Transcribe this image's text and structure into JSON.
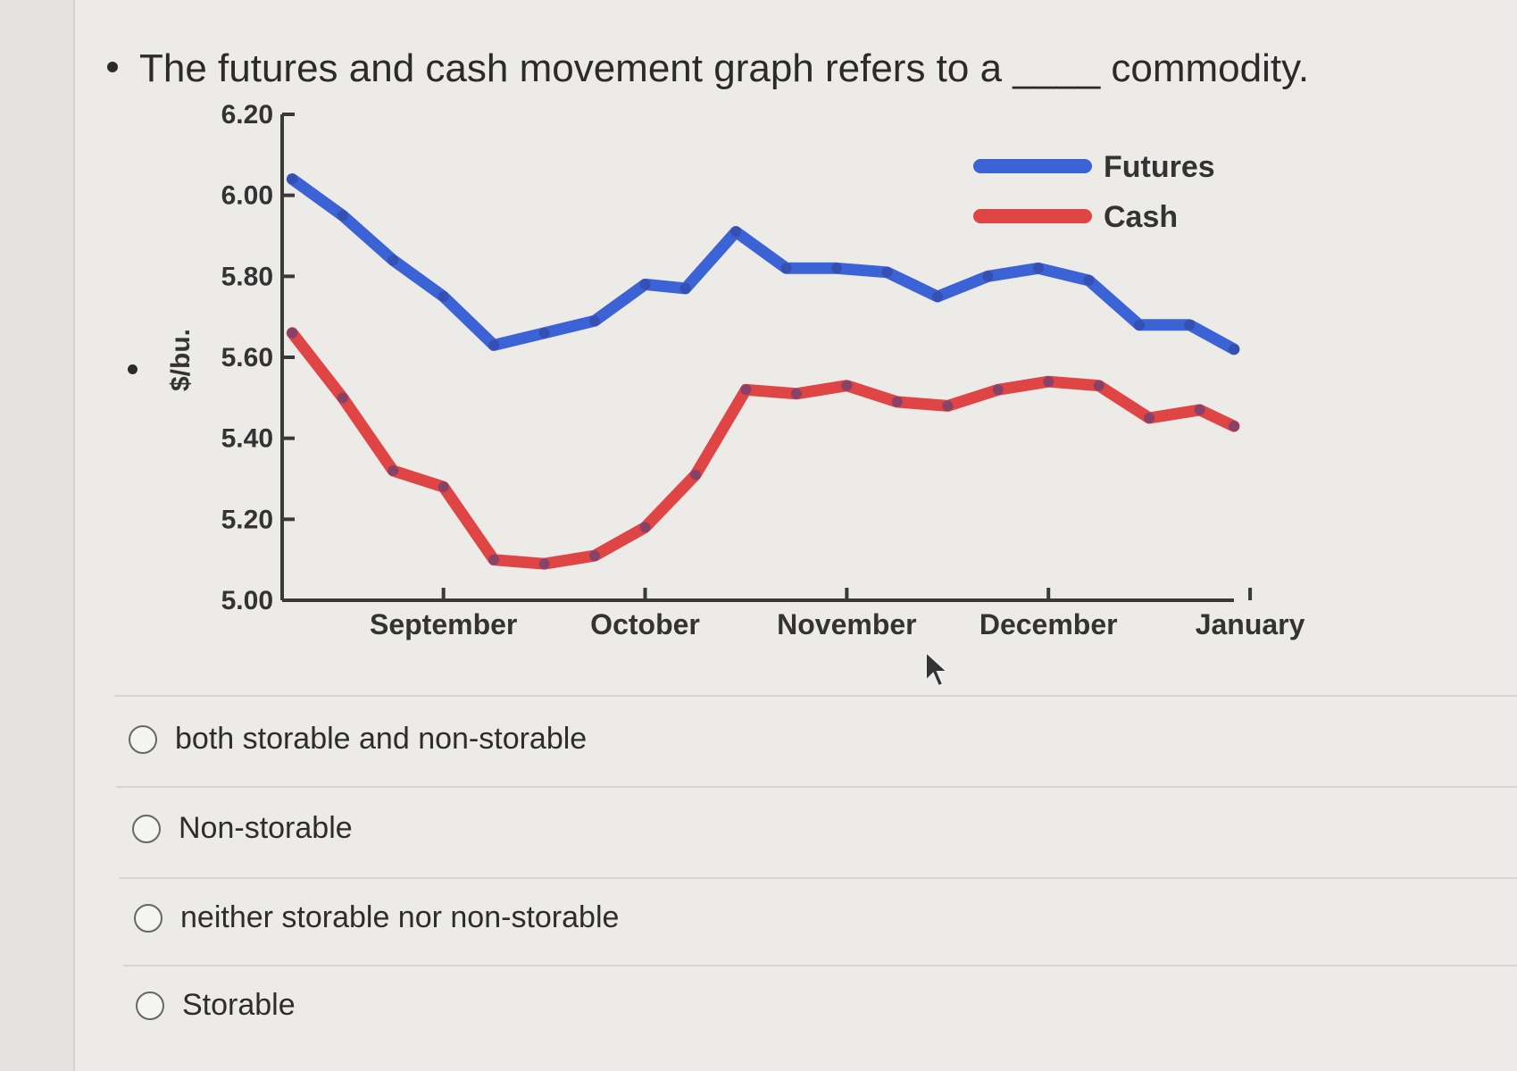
{
  "question": {
    "text": "The futures and cash movement graph refers to a ____ commodity."
  },
  "options": [
    {
      "label": "both storable and non-storable"
    },
    {
      "label": "Non-storable"
    },
    {
      "label": "neither storable nor non-storable"
    },
    {
      "label": "Storable"
    }
  ],
  "chart_data": {
    "type": "line",
    "title": "",
    "xlabel": "",
    "ylabel": "$/bu.",
    "ylim": [
      5.0,
      6.2
    ],
    "yticks": [
      "6.20",
      "6.00",
      "5.80",
      "5.60",
      "5.40",
      "5.20",
      "5.00"
    ],
    "ytick_values": [
      6.2,
      6.0,
      5.8,
      5.6,
      5.4,
      5.2,
      5.0
    ],
    "categories": [
      "September",
      "October",
      "November",
      "December",
      "January"
    ],
    "category_positions": [
      0.8,
      1.8,
      2.8,
      3.8,
      4.8
    ],
    "xlim": [
      0,
      4.72
    ],
    "legend": "top-right",
    "series": [
      {
        "name": "Futures",
        "color": "#3b63d6",
        "x": [
          0.05,
          0.3,
          0.55,
          0.8,
          1.05,
          1.3,
          1.55,
          1.8,
          2.0,
          2.25,
          2.5,
          2.75,
          3.0,
          3.25,
          3.5,
          3.75,
          4.0,
          4.25,
          4.5,
          4.72
        ],
        "y": [
          6.04,
          5.95,
          5.84,
          5.75,
          5.63,
          5.66,
          5.69,
          5.78,
          5.77,
          5.91,
          5.82,
          5.82,
          5.81,
          5.75,
          5.8,
          5.82,
          5.79,
          5.68,
          5.68,
          5.62
        ]
      },
      {
        "name": "Cash",
        "color": "#e04545",
        "x": [
          0.05,
          0.3,
          0.55,
          0.8,
          1.05,
          1.3,
          1.55,
          1.8,
          2.05,
          2.3,
          2.55,
          2.8,
          3.05,
          3.3,
          3.55,
          3.8,
          4.05,
          4.3,
          4.55,
          4.72
        ],
        "y": [
          5.66,
          5.5,
          5.32,
          5.28,
          5.1,
          5.09,
          5.11,
          5.18,
          5.31,
          5.52,
          5.51,
          5.53,
          5.49,
          5.48,
          5.52,
          5.54,
          5.53,
          5.45,
          5.47,
          5.43
        ]
      }
    ]
  }
}
